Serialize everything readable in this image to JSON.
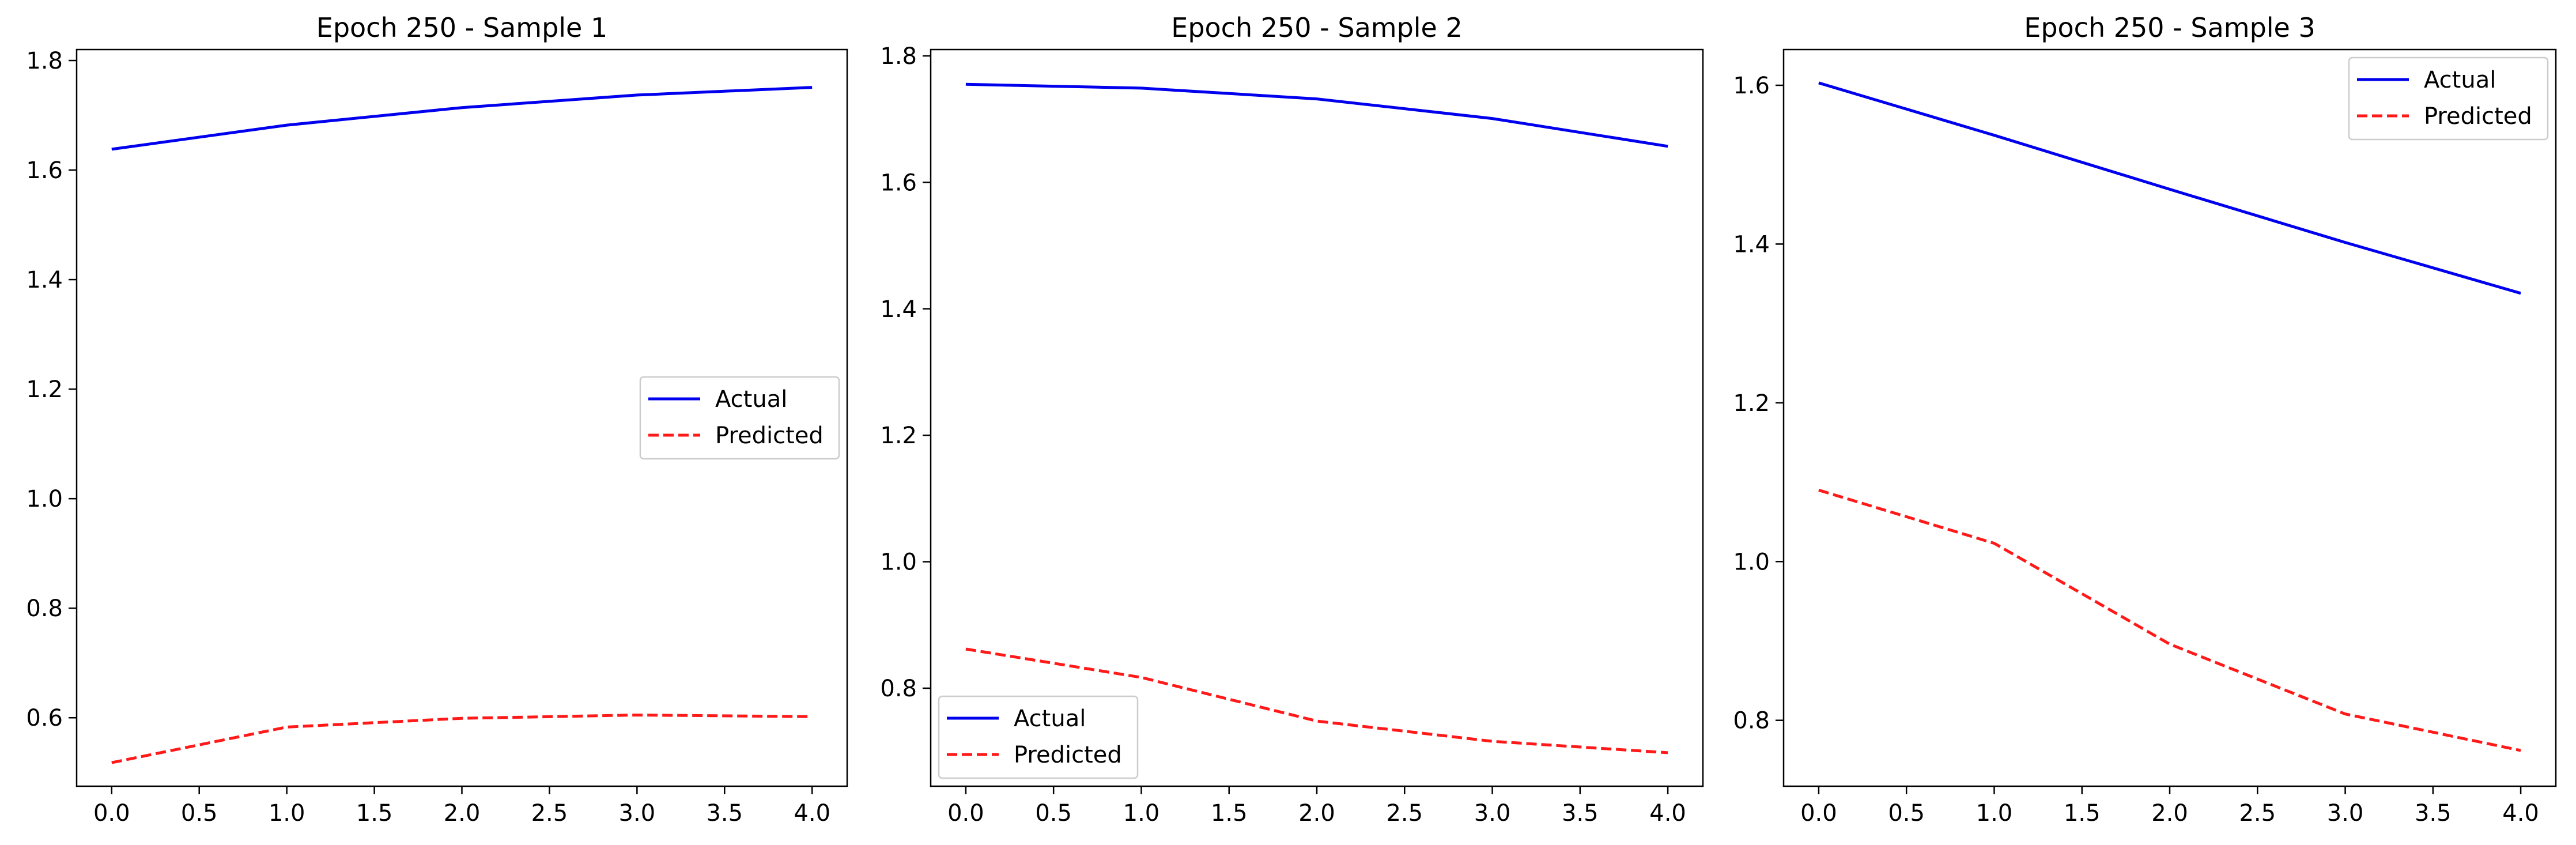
{
  "chart_data": [
    {
      "type": "line",
      "title": "Epoch 250 - Sample 1",
      "x": [
        0,
        1,
        2,
        3,
        4
      ],
      "xlim": [
        -0.2,
        4.2
      ],
      "ylim": [
        0.475,
        1.82
      ],
      "xticks": [
        0.0,
        0.5,
        1.0,
        1.5,
        2.0,
        2.5,
        3.0,
        3.5,
        4.0
      ],
      "xtick_labels": [
        "0.0",
        "0.5",
        "1.0",
        "1.5",
        "2.0",
        "2.5",
        "3.0",
        "3.5",
        "4.0"
      ],
      "yticks": [
        0.6,
        0.8,
        1.0,
        1.2,
        1.4,
        1.6,
        1.8
      ],
      "ytick_labels": [
        "0.6",
        "0.8",
        "1.0",
        "1.2",
        "1.4",
        "1.6",
        "1.8"
      ],
      "legend": "center-right",
      "series": [
        {
          "name": "Actual",
          "values": [
            1.638,
            1.682,
            1.714,
            1.737,
            1.751
          ],
          "color": "#0000ee",
          "style": "solid"
        },
        {
          "name": "Predicted",
          "values": [
            0.518,
            0.583,
            0.599,
            0.605,
            0.602
          ],
          "color": "#ff1a1a",
          "style": "dashed"
        }
      ]
    },
    {
      "type": "line",
      "title": "Epoch 250 - Sample 2",
      "x": [
        0,
        1,
        2,
        3,
        4
      ],
      "xlim": [
        -0.2,
        4.2
      ],
      "ylim": [
        0.645,
        1.81
      ],
      "xticks": [
        0.0,
        0.5,
        1.0,
        1.5,
        2.0,
        2.5,
        3.0,
        3.5,
        4.0
      ],
      "xtick_labels": [
        "0.0",
        "0.5",
        "1.0",
        "1.5",
        "2.0",
        "2.5",
        "3.0",
        "3.5",
        "4.0"
      ],
      "yticks": [
        0.8,
        1.0,
        1.2,
        1.4,
        1.6,
        1.8
      ],
      "ytick_labels": [
        "0.8",
        "1.0",
        "1.2",
        "1.4",
        "1.6",
        "1.8"
      ],
      "legend": "lower-left",
      "series": [
        {
          "name": "Actual",
          "values": [
            1.755,
            1.749,
            1.732,
            1.701,
            1.657
          ],
          "color": "#0000ee",
          "style": "solid"
        },
        {
          "name": "Predicted",
          "values": [
            0.862,
            0.817,
            0.748,
            0.716,
            0.698
          ],
          "color": "#ff1a1a",
          "style": "dashed"
        }
      ]
    },
    {
      "type": "line",
      "title": "Epoch 250 - Sample 3",
      "x": [
        0,
        1,
        2,
        3,
        4
      ],
      "xlim": [
        -0.2,
        4.2
      ],
      "ylim": [
        0.717,
        1.645
      ],
      "xticks": [
        0.0,
        0.5,
        1.0,
        1.5,
        2.0,
        2.5,
        3.0,
        3.5,
        4.0
      ],
      "xtick_labels": [
        "0.0",
        "0.5",
        "1.0",
        "1.5",
        "2.0",
        "2.5",
        "3.0",
        "3.5",
        "4.0"
      ],
      "yticks": [
        0.8,
        1.0,
        1.2,
        1.4,
        1.6
      ],
      "ytick_labels": [
        "0.8",
        "1.0",
        "1.2",
        "1.4",
        "1.6"
      ],
      "legend": "upper-right",
      "series": [
        {
          "name": "Actual",
          "values": [
            1.603,
            1.537,
            1.469,
            1.402,
            1.338
          ],
          "color": "#0000ee",
          "style": "solid"
        },
        {
          "name": "Predicted",
          "values": [
            1.09,
            1.023,
            0.896,
            0.808,
            0.762
          ],
          "color": "#ff1a1a",
          "style": "dashed"
        }
      ]
    }
  ]
}
